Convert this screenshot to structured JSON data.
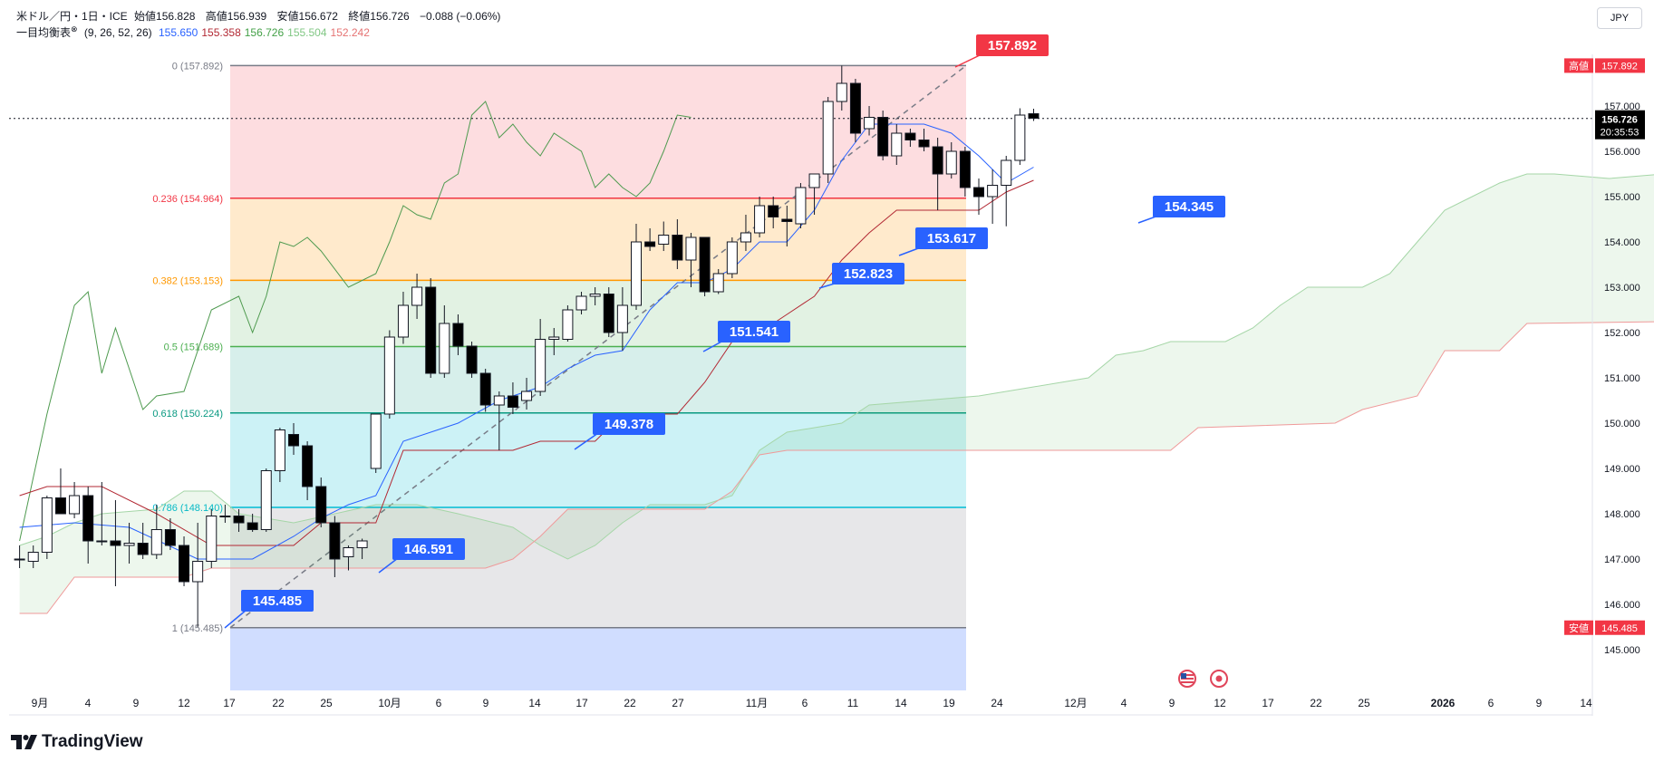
{
  "header": {
    "symbol": "米ドル／円・1日・ICE",
    "open_label": "始値",
    "open": "156.828",
    "high_label": "高値",
    "high": "156.939",
    "low_label": "安値",
    "low": "156.672",
    "close_label": "終値",
    "close": "156.726",
    "change": "−0.088 (−0.06%)",
    "indicator_name": "一目均衡表",
    "indicator_params": "(9, 26, 52, 26)",
    "indicator_values": [
      {
        "value": "155.650",
        "color": "#2962ff"
      },
      {
        "value": "155.358",
        "color": "#b22833"
      },
      {
        "value": "156.726",
        "color": "#43a047"
      },
      {
        "value": "155.504",
        "color": "#81c784"
      },
      {
        "value": "152.242",
        "color": "#e57373"
      }
    ]
  },
  "currency_button": "JPY",
  "brand": {
    "name": "TradingView",
    "logo_icon": "tradingview-logo-icon"
  },
  "chart_data": {
    "type": "candlestick",
    "x_ticks": [
      "9月",
      "4",
      "9",
      "12",
      "17",
      "22",
      "25",
      "10月",
      "6",
      "9",
      "14",
      "17",
      "22",
      "27",
      "11月",
      "6",
      "11",
      "14",
      "19",
      "24",
      "12月",
      "4",
      "9",
      "12",
      "17",
      "22",
      "25",
      "2026",
      "6",
      "9",
      "14"
    ],
    "y_ticks": [
      "157.000",
      "156.000",
      "155.000",
      "154.000",
      "153.000",
      "152.000",
      "151.000",
      "150.000",
      "149.000",
      "148.000",
      "147.000",
      "146.000",
      "145.000"
    ],
    "ylim": [
      144.5,
      158.2
    ],
    "current_price": "156.726",
    "countdown": "20:35:53",
    "high_marker": {
      "label": "高値",
      "value": "157.892"
    },
    "low_marker": {
      "label": "安値",
      "value": "145.485"
    },
    "fib_levels": [
      {
        "ratio": "0",
        "price": 157.892,
        "label": "0 (157.892)",
        "color": "#787b86"
      },
      {
        "ratio": "0.236",
        "price": 154.964,
        "label": "0.236 (154.964)",
        "color": "#f23645"
      },
      {
        "ratio": "0.382",
        "price": 153.153,
        "label": "0.382 (153.153)",
        "color": "#ff9800"
      },
      {
        "ratio": "0.5",
        "price": 151.689,
        "label": "0.5 (151.689)",
        "color": "#4caf50"
      },
      {
        "ratio": "0.618",
        "price": 150.224,
        "label": "0.618 (150.224)",
        "color": "#089981"
      },
      {
        "ratio": "0.786",
        "price": 148.14,
        "label": "0.786 (148.140)",
        "color": "#00bcd4"
      },
      {
        "ratio": "1",
        "price": 145.485,
        "label": "1 (145.485)",
        "color": "#787b86"
      }
    ],
    "price_callouts": [
      {
        "value": "157.892",
        "price": 157.892,
        "color": "#f23645"
      },
      {
        "value": "154.345",
        "price": 154.345,
        "color": "#2962ff"
      },
      {
        "value": "153.617",
        "price": 153.617,
        "color": "#2962ff"
      },
      {
        "value": "152.823",
        "price": 152.823,
        "color": "#2962ff"
      },
      {
        "value": "151.541",
        "price": 151.541,
        "color": "#2962ff"
      },
      {
        "value": "149.378",
        "price": 149.378,
        "color": "#2962ff"
      },
      {
        "value": "146.591",
        "price": 146.591,
        "color": "#2962ff"
      },
      {
        "value": "145.485",
        "price": 145.485,
        "color": "#2962ff"
      }
    ],
    "candles": [
      {
        "o": 147.0,
        "h": 147.3,
        "l": 146.8,
        "c": 147.0
      },
      {
        "o": 146.95,
        "h": 147.3,
        "l": 146.8,
        "c": 147.15
      },
      {
        "o": 147.15,
        "h": 148.4,
        "l": 147.0,
        "c": 148.35
      },
      {
        "o": 148.35,
        "h": 149.0,
        "l": 148.0,
        "c": 148.0
      },
      {
        "o": 148.0,
        "h": 148.7,
        "l": 147.9,
        "c": 148.4
      },
      {
        "o": 148.4,
        "h": 148.6,
        "l": 146.9,
        "c": 147.4
      },
      {
        "o": 147.4,
        "h": 148.7,
        "l": 147.3,
        "c": 147.4
      },
      {
        "o": 147.4,
        "h": 148.3,
        "l": 146.4,
        "c": 147.3
      },
      {
        "o": 147.3,
        "h": 147.8,
        "l": 146.9,
        "c": 147.35
      },
      {
        "o": 147.35,
        "h": 147.8,
        "l": 147.0,
        "c": 147.1
      },
      {
        "o": 147.1,
        "h": 148.2,
        "l": 147.0,
        "c": 147.65
      },
      {
        "o": 147.65,
        "h": 147.9,
        "l": 147.2,
        "c": 147.3
      },
      {
        "o": 147.3,
        "h": 147.5,
        "l": 146.4,
        "c": 146.5
      },
      {
        "o": 146.5,
        "h": 147.8,
        "l": 145.5,
        "c": 146.95
      },
      {
        "o": 146.95,
        "h": 148.1,
        "l": 146.8,
        "c": 147.95
      },
      {
        "o": 147.95,
        "h": 148.2,
        "l": 147.8,
        "c": 147.95
      },
      {
        "o": 147.95,
        "h": 148.1,
        "l": 147.6,
        "c": 147.8
      },
      {
        "o": 147.8,
        "h": 148.0,
        "l": 147.6,
        "c": 147.65
      },
      {
        "o": 147.65,
        "h": 149.0,
        "l": 147.6,
        "c": 148.95
      },
      {
        "o": 148.95,
        "h": 149.9,
        "l": 148.7,
        "c": 149.85
      },
      {
        "o": 149.75,
        "h": 150.0,
        "l": 149.3,
        "c": 149.5
      },
      {
        "o": 149.5,
        "h": 149.6,
        "l": 148.3,
        "c": 148.6
      },
      {
        "o": 148.6,
        "h": 148.8,
        "l": 147.7,
        "c": 147.8
      },
      {
        "o": 147.8,
        "h": 147.95,
        "l": 146.6,
        "c": 147.0
      },
      {
        "o": 147.05,
        "h": 147.3,
        "l": 146.75,
        "c": 147.25
      },
      {
        "o": 147.25,
        "h": 147.45,
        "l": 147.0,
        "c": 147.4
      },
      {
        "o": 149.0,
        "h": 150.2,
        "l": 148.9,
        "c": 150.2
      },
      {
        "o": 150.2,
        "h": 152.05,
        "l": 150.1,
        "c": 151.9
      },
      {
        "o": 151.9,
        "h": 152.9,
        "l": 151.75,
        "c": 152.6
      },
      {
        "o": 152.6,
        "h": 153.3,
        "l": 152.3,
        "c": 153.0
      },
      {
        "o": 153.0,
        "h": 153.2,
        "l": 151.0,
        "c": 151.1
      },
      {
        "o": 151.1,
        "h": 152.6,
        "l": 151.0,
        "c": 152.2
      },
      {
        "o": 152.2,
        "h": 152.4,
        "l": 151.5,
        "c": 151.7
      },
      {
        "o": 151.7,
        "h": 151.8,
        "l": 151.0,
        "c": 151.1
      },
      {
        "o": 151.1,
        "h": 151.2,
        "l": 150.25,
        "c": 150.4
      },
      {
        "o": 150.4,
        "h": 150.7,
        "l": 149.4,
        "c": 150.6
      },
      {
        "o": 150.6,
        "h": 150.9,
        "l": 150.2,
        "c": 150.35
      },
      {
        "o": 150.5,
        "h": 151.0,
        "l": 150.3,
        "c": 150.7
      },
      {
        "o": 150.7,
        "h": 152.3,
        "l": 150.6,
        "c": 151.85
      },
      {
        "o": 151.85,
        "h": 152.1,
        "l": 151.5,
        "c": 151.9
      },
      {
        "o": 151.85,
        "h": 152.6,
        "l": 151.8,
        "c": 152.5
      },
      {
        "o": 152.5,
        "h": 152.9,
        "l": 152.4,
        "c": 152.8
      },
      {
        "o": 152.8,
        "h": 153.0,
        "l": 152.6,
        "c": 152.85
      },
      {
        "o": 152.85,
        "h": 153.0,
        "l": 151.9,
        "c": 152.0
      },
      {
        "o": 152.0,
        "h": 153.0,
        "l": 151.6,
        "c": 152.6
      },
      {
        "o": 152.6,
        "h": 154.4,
        "l": 152.5,
        "c": 154.0
      },
      {
        "o": 154.0,
        "h": 154.3,
        "l": 153.8,
        "c": 153.9
      },
      {
        "o": 153.95,
        "h": 154.45,
        "l": 153.8,
        "c": 154.15
      },
      {
        "o": 154.15,
        "h": 154.5,
        "l": 153.4,
        "c": 153.6
      },
      {
        "o": 153.6,
        "h": 154.2,
        "l": 153.0,
        "c": 154.1
      },
      {
        "o": 154.1,
        "h": 154.1,
        "l": 152.8,
        "c": 152.9
      },
      {
        "o": 152.9,
        "h": 153.4,
        "l": 152.85,
        "c": 153.3
      },
      {
        "o": 153.3,
        "h": 154.1,
        "l": 153.2,
        "c": 154.0
      },
      {
        "o": 154.0,
        "h": 154.6,
        "l": 153.8,
        "c": 154.2
      },
      {
        "o": 154.2,
        "h": 155.0,
        "l": 154.1,
        "c": 154.8
      },
      {
        "o": 154.8,
        "h": 155.0,
        "l": 154.3,
        "c": 154.55
      },
      {
        "o": 154.5,
        "h": 154.8,
        "l": 153.9,
        "c": 154.45
      },
      {
        "o": 154.4,
        "h": 155.3,
        "l": 154.3,
        "c": 155.2
      },
      {
        "o": 155.2,
        "h": 155.5,
        "l": 154.6,
        "c": 155.5
      },
      {
        "o": 155.5,
        "h": 157.2,
        "l": 155.3,
        "c": 157.1
      },
      {
        "o": 157.1,
        "h": 157.892,
        "l": 156.9,
        "c": 157.5
      },
      {
        "o": 157.5,
        "h": 157.6,
        "l": 156.2,
        "c": 156.4
      },
      {
        "o": 156.5,
        "h": 157.0,
        "l": 156.35,
        "c": 156.75
      },
      {
        "o": 156.75,
        "h": 156.9,
        "l": 155.8,
        "c": 155.9
      },
      {
        "o": 155.9,
        "h": 156.6,
        "l": 155.7,
        "c": 156.4
      },
      {
        "o": 156.4,
        "h": 156.5,
        "l": 156.1,
        "c": 156.25
      },
      {
        "o": 156.25,
        "h": 156.5,
        "l": 156.0,
        "c": 156.1
      },
      {
        "o": 156.1,
        "h": 156.3,
        "l": 154.7,
        "c": 155.5
      },
      {
        "o": 155.5,
        "h": 156.2,
        "l": 155.4,
        "c": 156.0
      },
      {
        "o": 156.0,
        "h": 156.1,
        "l": 155.0,
        "c": 155.2
      },
      {
        "o": 155.2,
        "h": 155.4,
        "l": 154.6,
        "c": 155.0
      },
      {
        "o": 155.0,
        "h": 155.6,
        "l": 154.4,
        "c": 155.25
      },
      {
        "o": 155.25,
        "h": 155.9,
        "l": 154.345,
        "c": 155.8
      },
      {
        "o": 155.8,
        "h": 156.95,
        "l": 155.7,
        "c": 156.8
      },
      {
        "o": 156.83,
        "h": 156.94,
        "l": 156.67,
        "c": 156.73
      }
    ],
    "tenkan": [
      {
        "i": 0,
        "v": 147.7
      },
      {
        "i": 4,
        "v": 147.8
      },
      {
        "i": 8,
        "v": 147.7
      },
      {
        "i": 13,
        "v": 147.0
      },
      {
        "i": 17,
        "v": 147.0
      },
      {
        "i": 20,
        "v": 147.5
      },
      {
        "i": 22,
        "v": 147.9
      },
      {
        "i": 24,
        "v": 148.2
      },
      {
        "i": 26,
        "v": 148.4
      },
      {
        "i": 28,
        "v": 149.6
      },
      {
        "i": 32,
        "v": 150.0
      },
      {
        "i": 35,
        "v": 150.5
      },
      {
        "i": 38,
        "v": 150.8
      },
      {
        "i": 40,
        "v": 151.2
      },
      {
        "i": 42,
        "v": 151.5
      },
      {
        "i": 44,
        "v": 151.6
      },
      {
        "i": 46,
        "v": 152.5
      },
      {
        "i": 48,
        "v": 153.1
      },
      {
        "i": 50,
        "v": 153.1
      },
      {
        "i": 52,
        "v": 153.4
      },
      {
        "i": 54,
        "v": 154.0
      },
      {
        "i": 56,
        "v": 154.0
      },
      {
        "i": 58,
        "v": 154.7
      },
      {
        "i": 60,
        "v": 155.8
      },
      {
        "i": 62,
        "v": 156.6
      },
      {
        "i": 66,
        "v": 156.6
      },
      {
        "i": 68,
        "v": 156.4
      },
      {
        "i": 70,
        "v": 155.9
      },
      {
        "i": 72,
        "v": 155.3
      },
      {
        "i": 74,
        "v": 155.65
      }
    ],
    "kijun": [
      {
        "i": 0,
        "v": 148.4
      },
      {
        "i": 2,
        "v": 148.6
      },
      {
        "i": 6,
        "v": 148.6
      },
      {
        "i": 10,
        "v": 148.0
      },
      {
        "i": 14,
        "v": 147.3
      },
      {
        "i": 20,
        "v": 147.3
      },
      {
        "i": 22,
        "v": 147.8
      },
      {
        "i": 26,
        "v": 147.8
      },
      {
        "i": 28,
        "v": 149.4
      },
      {
        "i": 36,
        "v": 149.4
      },
      {
        "i": 38,
        "v": 149.6
      },
      {
        "i": 42,
        "v": 149.6
      },
      {
        "i": 44,
        "v": 150.2
      },
      {
        "i": 48,
        "v": 150.2
      },
      {
        "i": 50,
        "v": 150.9
      },
      {
        "i": 52,
        "v": 151.8
      },
      {
        "i": 54,
        "v": 152.0
      },
      {
        "i": 56,
        "v": 152.4
      },
      {
        "i": 58,
        "v": 152.8
      },
      {
        "i": 60,
        "v": 153.6
      },
      {
        "i": 62,
        "v": 154.2
      },
      {
        "i": 64,
        "v": 154.7
      },
      {
        "i": 70,
        "v": 154.7
      },
      {
        "i": 72,
        "v": 155.1
      },
      {
        "i": 74,
        "v": 155.36
      }
    ],
    "chikou": [
      {
        "i": 0,
        "v": 147.4
      },
      {
        "i": 2,
        "v": 150.2
      },
      {
        "i": 4,
        "v": 152.6
      },
      {
        "i": 5,
        "v": 152.9
      },
      {
        "i": 6,
        "v": 151.1
      },
      {
        "i": 7,
        "v": 152.1
      },
      {
        "i": 9,
        "v": 150.3
      },
      {
        "i": 10,
        "v": 150.6
      },
      {
        "i": 12,
        "v": 150.7
      },
      {
        "i": 14,
        "v": 152.5
      },
      {
        "i": 16,
        "v": 152.8
      },
      {
        "i": 17,
        "v": 152.0
      },
      {
        "i": 18,
        "v": 152.8
      },
      {
        "i": 19,
        "v": 154.0
      },
      {
        "i": 20,
        "v": 153.9
      },
      {
        "i": 21,
        "v": 154.1
      },
      {
        "i": 22,
        "v": 153.8
      },
      {
        "i": 24,
        "v": 153.0
      },
      {
        "i": 26,
        "v": 153.3
      },
      {
        "i": 27,
        "v": 154.0
      },
      {
        "i": 28,
        "v": 154.8
      },
      {
        "i": 29,
        "v": 154.6
      },
      {
        "i": 30,
        "v": 154.5
      },
      {
        "i": 31,
        "v": 155.3
      },
      {
        "i": 32,
        "v": 155.5
      },
      {
        "i": 33,
        "v": 156.8
      },
      {
        "i": 34,
        "v": 157.1
      },
      {
        "i": 35,
        "v": 156.3
      },
      {
        "i": 36,
        "v": 156.6
      },
      {
        "i": 37,
        "v": 156.2
      },
      {
        "i": 38,
        "v": 155.9
      },
      {
        "i": 39,
        "v": 156.4
      },
      {
        "i": 40,
        "v": 156.2
      },
      {
        "i": 41,
        "v": 156.0
      },
      {
        "i": 42,
        "v": 155.2
      },
      {
        "i": 43,
        "v": 155.5
      },
      {
        "i": 44,
        "v": 155.2
      },
      {
        "i": 45,
        "v": 155.0
      },
      {
        "i": 46,
        "v": 155.3
      },
      {
        "i": 47,
        "v": 156.0
      },
      {
        "i": 48,
        "v": 156.8
      },
      {
        "i": 49,
        "v": 156.75
      }
    ],
    "span_a": [
      {
        "i": 0,
        "v": 147.3
      },
      {
        "i": 2,
        "v": 147.5
      },
      {
        "i": 4,
        "v": 147.8
      },
      {
        "i": 6,
        "v": 148.0
      },
      {
        "i": 10,
        "v": 148.1
      },
      {
        "i": 12,
        "v": 148.5
      },
      {
        "i": 14,
        "v": 148.5
      },
      {
        "i": 16,
        "v": 148.0
      },
      {
        "i": 20,
        "v": 147.8
      },
      {
        "i": 26,
        "v": 148.2
      },
      {
        "i": 29,
        "v": 148.2
      },
      {
        "i": 32,
        "v": 148.0
      },
      {
        "i": 36,
        "v": 147.7
      },
      {
        "i": 38,
        "v": 147.3
      },
      {
        "i": 40,
        "v": 147.0
      },
      {
        "i": 42,
        "v": 147.3
      },
      {
        "i": 44,
        "v": 147.8
      },
      {
        "i": 46,
        "v": 148.2
      },
      {
        "i": 50,
        "v": 148.2
      },
      {
        "i": 52,
        "v": 148.4
      },
      {
        "i": 54,
        "v": 149.4
      },
      {
        "i": 56,
        "v": 149.8
      },
      {
        "i": 60,
        "v": 150.0
      },
      {
        "i": 62,
        "v": 150.4
      },
      {
        "i": 66,
        "v": 150.5
      },
      {
        "i": 70,
        "v": 150.6
      },
      {
        "i": 74,
        "v": 150.8
      },
      {
        "i": 78,
        "v": 151.0
      },
      {
        "i": 80,
        "v": 151.5
      },
      {
        "i": 82,
        "v": 151.6
      },
      {
        "i": 84,
        "v": 151.8
      },
      {
        "i": 88,
        "v": 151.8
      },
      {
        "i": 90,
        "v": 152.1
      },
      {
        "i": 92,
        "v": 152.6
      },
      {
        "i": 94,
        "v": 153.0
      },
      {
        "i": 98,
        "v": 153.0
      },
      {
        "i": 100,
        "v": 153.3
      },
      {
        "i": 102,
        "v": 154.0
      },
      {
        "i": 104,
        "v": 154.7
      },
      {
        "i": 106,
        "v": 155.0
      },
      {
        "i": 108,
        "v": 155.3
      },
      {
        "i": 110,
        "v": 155.5
      },
      {
        "i": 112,
        "v": 155.5
      },
      {
        "i": 116,
        "v": 155.4
      },
      {
        "i": 120,
        "v": 155.5
      }
    ],
    "span_b": [
      {
        "i": 0,
        "v": 145.8
      },
      {
        "i": 2,
        "v": 145.8
      },
      {
        "i": 4,
        "v": 146.6
      },
      {
        "i": 12,
        "v": 146.6
      },
      {
        "i": 14,
        "v": 146.8
      },
      {
        "i": 34,
        "v": 146.8
      },
      {
        "i": 36,
        "v": 147.0
      },
      {
        "i": 38,
        "v": 147.5
      },
      {
        "i": 40,
        "v": 148.1
      },
      {
        "i": 50,
        "v": 148.1
      },
      {
        "i": 52,
        "v": 148.5
      },
      {
        "i": 54,
        "v": 149.3
      },
      {
        "i": 56,
        "v": 149.4
      },
      {
        "i": 70,
        "v": 149.4
      },
      {
        "i": 84,
        "v": 149.4
      },
      {
        "i": 86,
        "v": 149.9
      },
      {
        "i": 96,
        "v": 150.0
      },
      {
        "i": 98,
        "v": 150.3
      },
      {
        "i": 102,
        "v": 150.6
      },
      {
        "i": 104,
        "v": 151.6
      },
      {
        "i": 108,
        "v": 151.6
      },
      {
        "i": 110,
        "v": 152.2
      },
      {
        "i": 120,
        "v": 152.24
      }
    ]
  }
}
